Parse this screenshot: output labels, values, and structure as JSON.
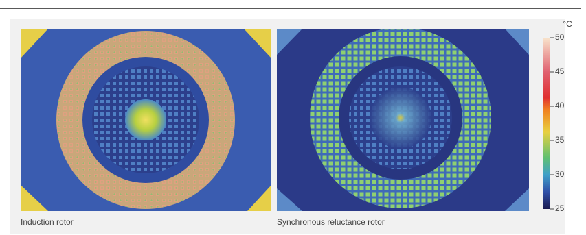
{
  "images": [
    {
      "caption": "Induction rotor"
    },
    {
      "caption": "Synchronous reluctance rotor"
    }
  ],
  "colorbar": {
    "unit": "°C",
    "range": [
      25,
      50
    ],
    "ticks": [
      50,
      45,
      40,
      35,
      30,
      25
    ]
  }
}
